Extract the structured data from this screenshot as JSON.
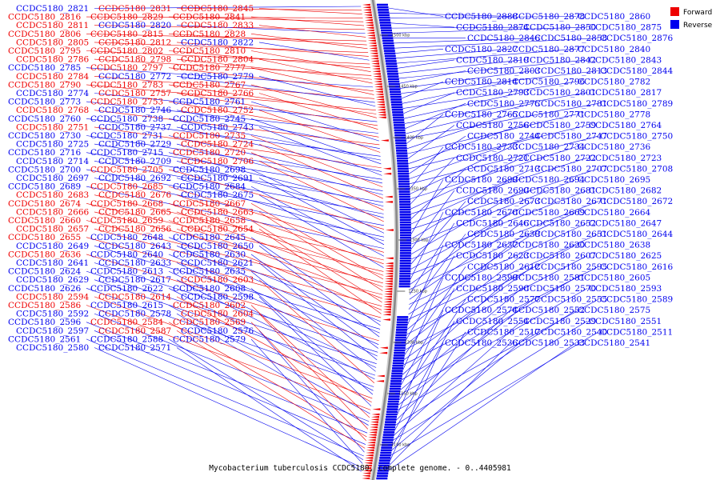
{
  "caption": "Mycobacterium tuberculosis CCDC5180, complete genome. - 0..4405981",
  "colors": {
    "forward": "#ee0000",
    "reverse": "#0000ee",
    "axis": "#888888"
  },
  "legend": [
    {
      "label": "Forward",
      "color": "#ee0000"
    },
    {
      "label": "Reverse",
      "color": "#0000ee"
    }
  ],
  "ruler": [
    {
      "label": "1500 kbp"
    },
    {
      "label": "1450 kbp"
    },
    {
      "label": "1400 kbp"
    },
    {
      "label": "1350 kbp"
    },
    {
      "label": "1300 kbp"
    },
    {
      "label": "1250 kbp"
    },
    {
      "label": "1200 kbp"
    },
    {
      "label": "1150 kbp"
    },
    {
      "label": "1100 kbp"
    }
  ],
  "left_labels": [
    [
      "CCDC5180_2821",
      "r"
    ],
    [
      "CCDC5180_2831",
      "f"
    ],
    [
      "CCDC5180_2845",
      "f"
    ],
    [
      "CCDC5180_2816",
      "f"
    ],
    [
      "CCDC5180_2829",
      "f"
    ],
    [
      "CCDC5180_2841",
      "f"
    ],
    [
      "CCDC5180_2811",
      "f"
    ],
    [
      "CCDC5180_2820",
      "r"
    ],
    [
      "CCDC5180_2833",
      "f"
    ],
    [
      "CCDC5180_2806",
      "f"
    ],
    [
      "CCDC5180_2815",
      "f"
    ],
    [
      "CCDC5180_2828",
      "f"
    ],
    [
      "CCDC5180_2805",
      "f"
    ],
    [
      "CCDC5180_2812",
      "f"
    ],
    [
      "CCDC5180_2822",
      "r"
    ],
    [
      "CCDC5180_2795",
      "f"
    ],
    [
      "CCDC5180_2802",
      "f"
    ],
    [
      "CCDC5180_2810",
      "f"
    ],
    [
      "CCDC5180_2786",
      "f"
    ],
    [
      "CCDC5180_2798",
      "f"
    ],
    [
      "CCDC5180_2804",
      "f"
    ],
    [
      "CCDC5180_2785",
      "r"
    ],
    [
      "CCDC5180_2797",
      "f"
    ],
    [
      "CCDC5180_2777",
      "f"
    ],
    [
      "CCDC5180_2784",
      "f"
    ],
    [
      "CCDC5180_2772",
      "r"
    ],
    [
      "CCDC5180_2779",
      "r"
    ],
    [
      "CCDC5180_2790",
      "f"
    ],
    [
      "CCDC5180_2783",
      "f"
    ],
    [
      "CCDC5180_2767",
      "f"
    ],
    [
      "CCDC5180_2774",
      "r"
    ],
    [
      "CCDC5180_2757",
      "f"
    ],
    [
      "CCDC5180_2766",
      "f"
    ],
    [
      "CCDC5180_2773",
      "r"
    ],
    [
      "CCDC5180_2753",
      "f"
    ],
    [
      "CCDC5180_2761",
      "r"
    ],
    [
      "CCDC5180_2768",
      "f"
    ],
    [
      "CCDC5180_2746",
      "r"
    ],
    [
      "CCDC5180_2752",
      "f"
    ],
    [
      "CCDC5180_2760",
      "r"
    ],
    [
      "CCDC5180_2738",
      "r"
    ],
    [
      "CCDC5180_2745",
      "r"
    ],
    [
      "CCDC5180_2751",
      "f"
    ],
    [
      "CCDC5180_2737",
      "r"
    ],
    [
      "CCDC5180_2743",
      "r"
    ],
    [
      "CCDC5180_2730",
      "r"
    ],
    [
      "CCDC5180_2731",
      "r"
    ],
    [
      "CCDC5180_2735",
      "f"
    ],
    [
      "CCDC5180_2725",
      "r"
    ],
    [
      "CCDC5180_2729",
      "r"
    ],
    [
      "CCDC5180_2724",
      "f"
    ],
    [
      "CCDC5180_2716",
      "r"
    ],
    [
      "CCDC5180_2715",
      "r"
    ],
    [
      "CCDC5180_2720",
      "f"
    ],
    [
      "CCDC5180_2714",
      "r"
    ],
    [
      "CCDC5180_2709",
      "r"
    ],
    [
      "CCDC5180_2706",
      "f"
    ],
    [
      "CCDC5180_2700",
      "r"
    ],
    [
      "CCDC5180_2705",
      "f"
    ],
    [
      "CCDC5180_2698",
      "r"
    ],
    [
      "CCDC5180_2697",
      "r"
    ],
    [
      "CCDC5180_2692",
      "r"
    ],
    [
      "CCDC5180_2691",
      "r"
    ],
    [
      "CCDC5180_2689",
      "r"
    ],
    [
      "CCDC5180_2685",
      "f"
    ],
    [
      "CCDC5180_2684",
      "r"
    ],
    [
      "CCDC5180_2683",
      "f"
    ],
    [
      "CCDC5180_2676",
      "f"
    ],
    [
      "CCDC5180_2675",
      "r"
    ],
    [
      "CCDC5180_2674",
      "f"
    ],
    [
      "CCDC5180_2668",
      "f"
    ],
    [
      "CCDC5180_2667",
      "f"
    ],
    [
      "CCDC5180_2666",
      "f"
    ],
    [
      "CCDC5180_2665",
      "f"
    ],
    [
      "CCDC5180_2663",
      "f"
    ],
    [
      "CCDC5180_2660",
      "f"
    ],
    [
      "CCDC5180_2659",
      "f"
    ],
    [
      "CCDC5180_2658",
      "f"
    ],
    [
      "CCDC5180_2657",
      "f"
    ],
    [
      "CCDC5180_2656",
      "f"
    ],
    [
      "CCDC5180_2654",
      "f"
    ],
    [
      "CCDC5180_2655",
      "f"
    ],
    [
      "CCDC5180_2648",
      "r"
    ],
    [
      "CCDC5180_2645",
      "r"
    ],
    [
      "CCDC5180_2649",
      "r"
    ],
    [
      "CCDC5180_2643",
      "r"
    ],
    [
      "CCDC5180_2650",
      "r"
    ],
    [
      "CCDC5180_2636",
      "f"
    ],
    [
      "CCDC5180_2640",
      "r"
    ],
    [
      "CCDC5180_2630",
      "r"
    ],
    [
      "CCDC5180_2641",
      "r"
    ],
    [
      "CCDC5180_2633",
      "r"
    ],
    [
      "CCDC5180_2621",
      "r"
    ],
    [
      "CCDC5180_2624",
      "r"
    ],
    [
      "CCDC5180_2613",
      "r"
    ],
    [
      "CCDC5180_2635",
      "r"
    ],
    [
      "CCDC5180_2629",
      "r"
    ],
    [
      "CCDC5180_2617",
      "r"
    ],
    [
      "CCDC5180_2603",
      "f"
    ],
    [
      "CCDC5180_2626",
      "r"
    ],
    [
      "CCDC5180_2622",
      "r"
    ],
    [
      "CCDC5180_2608",
      "r"
    ],
    [
      "CCDC5180_2594",
      "f"
    ],
    [
      "CCDC5180_2614",
      "f"
    ],
    [
      "CCDC5180_2598",
      "r"
    ],
    [
      "CCDC5180_2586",
      "f"
    ],
    [
      "CCDC5180_2615",
      "r"
    ],
    [
      "CCDC5180_2602",
      "f"
    ],
    [
      "CCDC5180_2592",
      "r"
    ],
    [
      "CCDC5180_2578",
      "r"
    ],
    [
      "CCDC5180_2604",
      "f"
    ],
    [
      "CCDC5180_2596",
      "r"
    ],
    [
      "CCDC5180_2584",
      "f"
    ],
    [
      "CCDC5180_2569",
      "f"
    ],
    [
      "CCDC5180_2597",
      "r"
    ],
    [
      "CCDC5180_2587",
      "f"
    ],
    [
      "CCDC5180_2576",
      "r"
    ],
    [
      "CCDC5180_2561",
      "r"
    ],
    [
      "CCDC5180_2588",
      "r"
    ],
    [
      "CCDC5180_2579",
      "r"
    ],
    [
      "CCDC5180_2580",
      "r"
    ],
    [
      "CCDC5180_2571",
      "r"
    ]
  ],
  "right_labels": [
    [
      "CCDC5180_2888",
      "r"
    ],
    [
      "CCDC5180_2878",
      "r"
    ],
    [
      "CCDC5180_2860",
      "r"
    ],
    [
      "CCDC5180_2874",
      "r"
    ],
    [
      "CCDC5180_2850",
      "r"
    ],
    [
      "CCDC5180_2875",
      "r"
    ],
    [
      "CCDC5180_2846",
      "r"
    ],
    [
      "CCDC5180_2858",
      "r"
    ],
    [
      "CCDC5180_2876",
      "r"
    ],
    [
      "CCDC5180_2827",
      "r"
    ],
    [
      "CCDC5180_2877",
      "r"
    ],
    [
      "CCDC5180_2840",
      "r"
    ],
    [
      "CCDC5180_2819",
      "r"
    ],
    [
      "CCDC5180_2842",
      "r"
    ],
    [
      "CCDC5180_2843",
      "r"
    ],
    [
      "CCDC5180_2803",
      "r"
    ],
    [
      "CCDC5180_2813",
      "r"
    ],
    [
      "CCDC5180_2844",
      "r"
    ],
    [
      "CCDC5180_2814",
      "r"
    ],
    [
      "CCDC5180_2796",
      "r"
    ],
    [
      "CCDC5180_2782",
      "r"
    ],
    [
      "CCDC5180_2793",
      "r"
    ],
    [
      "CCDC5180_2801",
      "r"
    ],
    [
      "CCDC5180_2817",
      "r"
    ],
    [
      "CCDC5180_2775",
      "r"
    ],
    [
      "CCDC5180_2781",
      "r"
    ],
    [
      "CCDC5180_2789",
      "r"
    ],
    [
      "CCDC5180_2765",
      "r"
    ],
    [
      "CCDC5180_2771",
      "r"
    ],
    [
      "CCDC5180_2778",
      "r"
    ],
    [
      "CCDC5180_2756",
      "r"
    ],
    [
      "CCDC5180_2759",
      "r"
    ],
    [
      "CCDC5180_2764",
      "r"
    ],
    [
      "CCDC5180_2744",
      "r"
    ],
    [
      "CCDC5180_2747",
      "r"
    ],
    [
      "CCDC5180_2750",
      "r"
    ],
    [
      "CCDC5180_2733",
      "r"
    ],
    [
      "CCDC5180_2734",
      "r"
    ],
    [
      "CCDC5180_2736",
      "r"
    ],
    [
      "CCDC5180_2721",
      "r"
    ],
    [
      "CCDC5180_2722",
      "r"
    ],
    [
      "CCDC5180_2723",
      "r"
    ],
    [
      "CCDC5180_2713",
      "r"
    ],
    [
      "CCDC5180_2707",
      "r"
    ],
    [
      "CCDC5180_2708",
      "r"
    ],
    [
      "CCDC5180_2699",
      "r"
    ],
    [
      "CCDC5180_2694",
      "r"
    ],
    [
      "CCDC5180_2695",
      "r"
    ],
    [
      "CCDC5180_2690",
      "r"
    ],
    [
      "CCDC5180_2681",
      "r"
    ],
    [
      "CCDC5180_2682",
      "r"
    ],
    [
      "CCDC5180_2673",
      "r"
    ],
    [
      "CCDC5180_2671",
      "r"
    ],
    [
      "CCDC5180_2672",
      "r"
    ],
    [
      "CCDC5180_2670",
      "r"
    ],
    [
      "CCDC5180_2669",
      "r"
    ],
    [
      "CCDC5180_2664",
      "r"
    ],
    [
      "CCDC5180_2646",
      "r"
    ],
    [
      "CCDC5180_2652",
      "r"
    ],
    [
      "CCDC5180_2647",
      "r"
    ],
    [
      "CCDC5180_2639",
      "r"
    ],
    [
      "CCDC5180_2651",
      "r"
    ],
    [
      "CCDC5180_2644",
      "r"
    ],
    [
      "CCDC5180_2637",
      "r"
    ],
    [
      "CCDC5180_2620",
      "r"
    ],
    [
      "CCDC5180_2638",
      "r"
    ],
    [
      "CCDC5180_2623",
      "r"
    ],
    [
      "CCDC5180_2607",
      "r"
    ],
    [
      "CCDC5180_2625",
      "r"
    ],
    [
      "CCDC5180_2612",
      "r"
    ],
    [
      "CCDC5180_2595",
      "r"
    ],
    [
      "CCDC5180_2616",
      "r"
    ],
    [
      "CCDC5180_2599",
      "r"
    ],
    [
      "CCDC5180_2581",
      "r"
    ],
    [
      "CCDC5180_2605",
      "r"
    ],
    [
      "CCDC5180_2590",
      "r"
    ],
    [
      "CCDC5180_2570",
      "r"
    ],
    [
      "CCDC5180_2593",
      "r"
    ],
    [
      "CCDC5180_2577",
      "r"
    ],
    [
      "CCDC5180_2555",
      "r"
    ],
    [
      "CCDC5180_2589",
      "r"
    ],
    [
      "CCDC5180_2574",
      "r"
    ],
    [
      "CCDC5180_2552",
      "r"
    ],
    [
      "CCDC5180_2575",
      "r"
    ],
    [
      "CCDC5180_2554",
      "r"
    ],
    [
      "CCDC5180_2529",
      "r"
    ],
    [
      "CCDC5180_2551",
      "r"
    ],
    [
      "CCDC5180_2517",
      "r"
    ],
    [
      "CCDC5180_2540",
      "r"
    ],
    [
      "CCDC5180_2511",
      "r"
    ],
    [
      "CCDC5180_2536",
      "r"
    ],
    [
      "CCDC5180_2533",
      "r"
    ],
    [
      "CCDC5180_2541",
      "r"
    ]
  ]
}
